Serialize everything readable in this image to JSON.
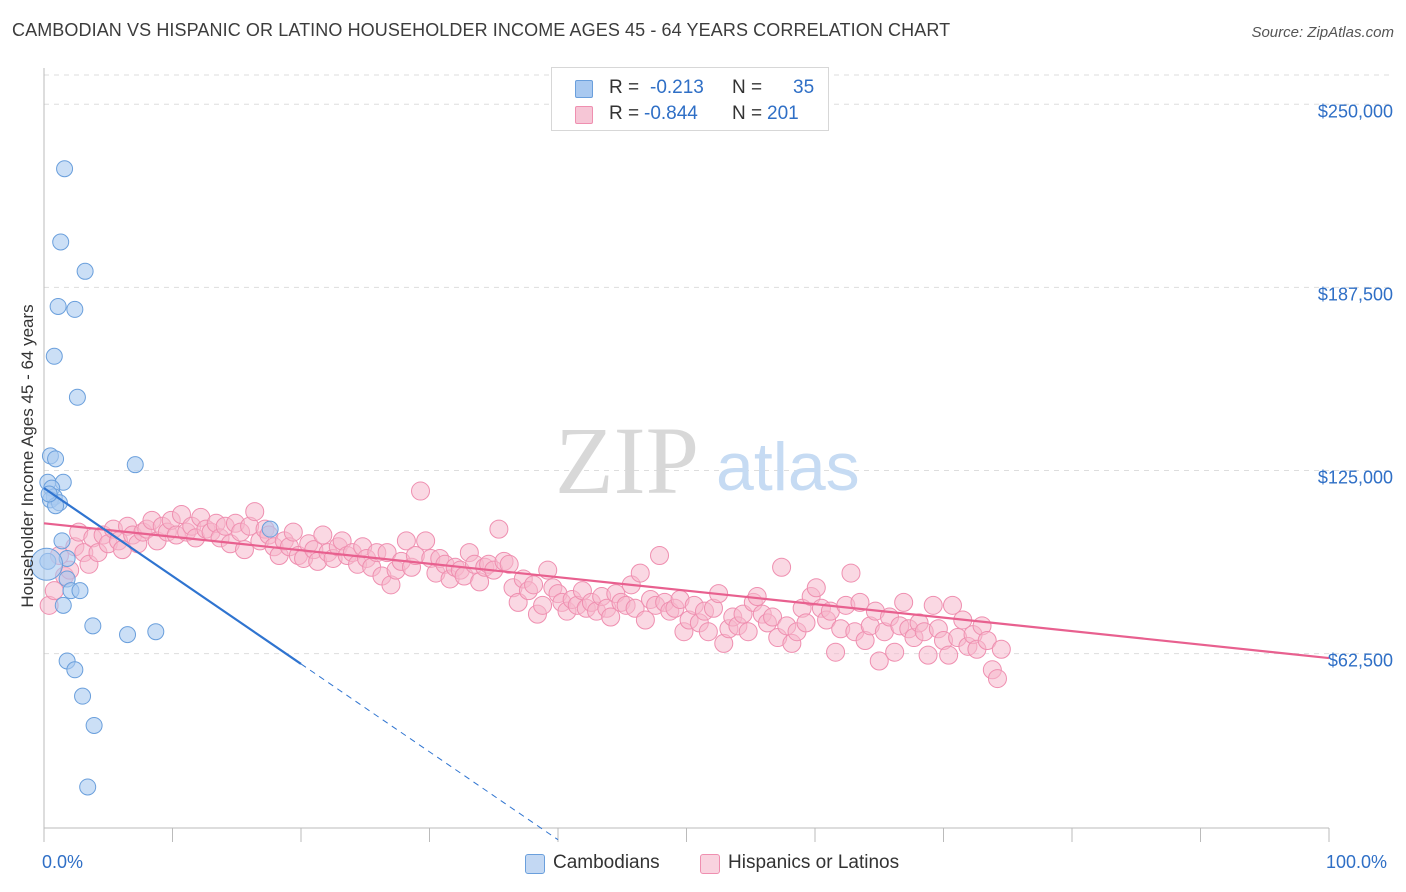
{
  "title": "CAMBODIAN VS HISPANIC OR LATINO HOUSEHOLDER INCOME AGES 45 - 64 YEARS CORRELATION CHART",
  "source": "Source: ZipAtlas.com",
  "watermark": {
    "zip": "ZIP",
    "atlas": "atlas"
  },
  "legend_top": {
    "row1": {
      "r_label": "R =",
      "r_value": "-0.213",
      "n_label": "N =",
      "n_value": "35"
    },
    "row2": {
      "r_label": "R =",
      "r_value": "-0.844",
      "n_label": "N =",
      "n_value": "201"
    }
  },
  "legend_bottom": {
    "cambodians": "Cambodians",
    "hispanics": "Hispanics or Latinos"
  },
  "colors": {
    "blue_fill": "#a9c9f0",
    "blue_stroke": "#6a9fdc",
    "blue_line": "#2f74d0",
    "pink_fill": "#f6b8cc",
    "pink_stroke": "#ef8fb0",
    "pink_line": "#e8608f",
    "tick_text": "#2f6fc6",
    "grid": "#dddddd"
  },
  "chart_data": {
    "type": "scatter",
    "title": "CAMBODIAN VS HISPANIC OR LATINO HOUSEHOLDER INCOME AGES 45 - 64 YEARS CORRELATION CHART",
    "xlabel": "",
    "ylabel": "Householder Income Ages 45 - 64 years",
    "xlim": [
      0,
      100
    ],
    "ylim": [
      3000,
      260000
    ],
    "x_tick_labels": [
      "0.0%",
      "100.0%"
    ],
    "y_ticks": [
      62500,
      125000,
      187500,
      250000
    ],
    "y_tick_labels": [
      "$62,500",
      "$125,000",
      "$187,500",
      "$250,000"
    ],
    "grid": true,
    "series": [
      {
        "name": "Cambodians",
        "r": -0.213,
        "n": 35,
        "trend": {
          "x0": 0,
          "y0": 119000,
          "x1": 20,
          "y1": 59000,
          "dashed_to_x": 40
        },
        "points": [
          [
            1.6,
            228000
          ],
          [
            1.3,
            203000
          ],
          [
            3.2,
            193000
          ],
          [
            1.1,
            181000
          ],
          [
            2.4,
            180000
          ],
          [
            0.8,
            164000
          ],
          [
            2.6,
            150000
          ],
          [
            0.5,
            130000
          ],
          [
            0.9,
            129000
          ],
          [
            7.1,
            127000
          ],
          [
            0.3,
            121000
          ],
          [
            1.5,
            121000
          ],
          [
            0.6,
            119000
          ],
          [
            0.8,
            116000
          ],
          [
            0.5,
            115000
          ],
          [
            1.2,
            114000
          ],
          [
            0.9,
            113000
          ],
          [
            17.6,
            105000
          ],
          [
            1.4,
            101000
          ],
          [
            0.3,
            94000
          ],
          [
            1.8,
            95000
          ],
          [
            1.8,
            88000
          ],
          [
            2.1,
            84000
          ],
          [
            2.8,
            84000
          ],
          [
            1.5,
            79000
          ],
          [
            3.8,
            72000
          ],
          [
            6.5,
            69000
          ],
          [
            8.7,
            70000
          ],
          [
            1.8,
            60000
          ],
          [
            2.4,
            57000
          ],
          [
            3.0,
            48000
          ],
          [
            3.9,
            38000
          ],
          [
            3.4,
            17000
          ],
          [
            0.2,
            93000
          ],
          [
            0.4,
            117000
          ]
        ]
      },
      {
        "name": "Hispanics or Latinos",
        "r": -0.844,
        "n": 201,
        "trend": {
          "x0": 0,
          "y0": 107000,
          "x1": 100,
          "y1": 61000
        },
        "points": [
          [
            0.4,
            79000
          ],
          [
            0.8,
            84000
          ],
          [
            1.2,
            96000
          ],
          [
            1.6,
            89000
          ],
          [
            2.0,
            91000
          ],
          [
            2.4,
            99000
          ],
          [
            2.7,
            104000
          ],
          [
            3.1,
            97000
          ],
          [
            3.5,
            93000
          ],
          [
            3.8,
            102000
          ],
          [
            4.2,
            97000
          ],
          [
            4.6,
            103000
          ],
          [
            5.0,
            100000
          ],
          [
            5.4,
            105000
          ],
          [
            5.8,
            101000
          ],
          [
            6.1,
            98000
          ],
          [
            6.5,
            106000
          ],
          [
            6.9,
            103000
          ],
          [
            7.3,
            100000
          ],
          [
            7.7,
            104000
          ],
          [
            8.0,
            105000
          ],
          [
            8.4,
            108000
          ],
          [
            8.8,
            101000
          ],
          [
            9.2,
            106000
          ],
          [
            9.6,
            104000
          ],
          [
            9.9,
            108000
          ],
          [
            10.3,
            103000
          ],
          [
            10.7,
            110000
          ],
          [
            11.1,
            104000
          ],
          [
            11.5,
            106000
          ],
          [
            11.8,
            102000
          ],
          [
            12.2,
            109000
          ],
          [
            12.6,
            105000
          ],
          [
            13.0,
            104000
          ],
          [
            13.4,
            107000
          ],
          [
            13.7,
            102000
          ],
          [
            14.1,
            106000
          ],
          [
            14.5,
            100000
          ],
          [
            14.9,
            107000
          ],
          [
            15.3,
            104000
          ],
          [
            15.6,
            98000
          ],
          [
            16.0,
            106000
          ],
          [
            16.4,
            111000
          ],
          [
            16.8,
            101000
          ],
          [
            17.2,
            105000
          ],
          [
            17.5,
            103000
          ],
          [
            17.9,
            99000
          ],
          [
            18.3,
            96000
          ],
          [
            18.7,
            101000
          ],
          [
            19.1,
            99000
          ],
          [
            19.4,
            104000
          ],
          [
            19.8,
            96000
          ],
          [
            20.2,
            95000
          ],
          [
            20.6,
            100000
          ],
          [
            21.0,
            98000
          ],
          [
            21.3,
            94000
          ],
          [
            21.7,
            103000
          ],
          [
            22.1,
            97000
          ],
          [
            22.5,
            95000
          ],
          [
            22.9,
            99000
          ],
          [
            23.2,
            101000
          ],
          [
            23.6,
            96000
          ],
          [
            24.0,
            97000
          ],
          [
            24.4,
            93000
          ],
          [
            24.8,
            99000
          ],
          [
            25.1,
            95000
          ],
          [
            25.5,
            92000
          ],
          [
            25.9,
            97000
          ],
          [
            26.3,
            89000
          ],
          [
            26.7,
            97000
          ],
          [
            27.0,
            86000
          ],
          [
            27.4,
            91000
          ],
          [
            27.8,
            94000
          ],
          [
            28.2,
            101000
          ],
          [
            28.6,
            92000
          ],
          [
            28.9,
            96000
          ],
          [
            29.3,
            118000
          ],
          [
            29.7,
            101000
          ],
          [
            30.1,
            95000
          ],
          [
            30.5,
            90000
          ],
          [
            30.8,
            95000
          ],
          [
            31.2,
            93000
          ],
          [
            31.6,
            88000
          ],
          [
            32.0,
            92000
          ],
          [
            32.4,
            91000
          ],
          [
            32.7,
            89000
          ],
          [
            33.1,
            97000
          ],
          [
            33.5,
            93000
          ],
          [
            33.9,
            87000
          ],
          [
            34.3,
            92000
          ],
          [
            34.6,
            93000
          ],
          [
            35.0,
            91000
          ],
          [
            35.4,
            105000
          ],
          [
            35.8,
            94000
          ],
          [
            36.2,
            93000
          ],
          [
            36.5,
            85000
          ],
          [
            36.9,
            80000
          ],
          [
            37.3,
            88000
          ],
          [
            37.7,
            84000
          ],
          [
            38.1,
            86000
          ],
          [
            38.4,
            76000
          ],
          [
            38.8,
            79000
          ],
          [
            39.2,
            91000
          ],
          [
            39.6,
            85000
          ],
          [
            40.0,
            83000
          ],
          [
            40.3,
            80000
          ],
          [
            40.7,
            77000
          ],
          [
            41.1,
            81000
          ],
          [
            41.5,
            79000
          ],
          [
            41.9,
            84000
          ],
          [
            42.2,
            78000
          ],
          [
            42.6,
            80000
          ],
          [
            43.0,
            77000
          ],
          [
            43.4,
            82000
          ],
          [
            43.8,
            78000
          ],
          [
            44.1,
            75000
          ],
          [
            44.5,
            83000
          ],
          [
            44.9,
            80000
          ],
          [
            45.3,
            79000
          ],
          [
            45.7,
            86000
          ],
          [
            46.0,
            78000
          ],
          [
            46.4,
            90000
          ],
          [
            46.8,
            74000
          ],
          [
            47.2,
            81000
          ],
          [
            47.6,
            79000
          ],
          [
            47.9,
            96000
          ],
          [
            48.3,
            80000
          ],
          [
            48.7,
            77000
          ],
          [
            49.1,
            78000
          ],
          [
            49.5,
            81000
          ],
          [
            49.8,
            70000
          ],
          [
            50.2,
            74000
          ],
          [
            50.6,
            79000
          ],
          [
            51.0,
            73000
          ],
          [
            51.4,
            77000
          ],
          [
            51.7,
            70000
          ],
          [
            52.1,
            78000
          ],
          [
            52.5,
            83000
          ],
          [
            52.9,
            66000
          ],
          [
            53.3,
            71000
          ],
          [
            53.6,
            75000
          ],
          [
            54.0,
            72000
          ],
          [
            54.4,
            76000
          ],
          [
            54.8,
            70000
          ],
          [
            55.2,
            80000
          ],
          [
            55.5,
            82000
          ],
          [
            55.9,
            76000
          ],
          [
            56.3,
            73000
          ],
          [
            56.7,
            75000
          ],
          [
            57.1,
            68000
          ],
          [
            57.4,
            92000
          ],
          [
            57.8,
            72000
          ],
          [
            58.2,
            66000
          ],
          [
            58.6,
            70000
          ],
          [
            59.0,
            78000
          ],
          [
            59.3,
            73000
          ],
          [
            59.7,
            82000
          ],
          [
            60.1,
            85000
          ],
          [
            60.5,
            78000
          ],
          [
            60.9,
            74000
          ],
          [
            61.2,
            77000
          ],
          [
            61.6,
            63000
          ],
          [
            62.0,
            71000
          ],
          [
            62.4,
            79000
          ],
          [
            62.8,
            90000
          ],
          [
            63.1,
            70000
          ],
          [
            63.5,
            80000
          ],
          [
            63.9,
            67000
          ],
          [
            64.3,
            72000
          ],
          [
            64.7,
            77000
          ],
          [
            65.0,
            60000
          ],
          [
            65.4,
            70000
          ],
          [
            65.8,
            75000
          ],
          [
            66.2,
            63000
          ],
          [
            66.6,
            72000
          ],
          [
            66.9,
            80000
          ],
          [
            67.3,
            71000
          ],
          [
            67.7,
            68000
          ],
          [
            68.1,
            73000
          ],
          [
            68.5,
            70000
          ],
          [
            68.8,
            62000
          ],
          [
            69.2,
            79000
          ],
          [
            69.6,
            71000
          ],
          [
            70.0,
            67000
          ],
          [
            70.4,
            62000
          ],
          [
            70.7,
            79000
          ],
          [
            71.1,
            68000
          ],
          [
            71.5,
            74000
          ],
          [
            71.9,
            65000
          ],
          [
            72.3,
            69000
          ],
          [
            72.6,
            64000
          ],
          [
            73.0,
            72000
          ],
          [
            73.4,
            67000
          ],
          [
            73.8,
            57000
          ],
          [
            74.2,
            54000
          ],
          [
            74.5,
            64000
          ]
        ]
      }
    ]
  }
}
